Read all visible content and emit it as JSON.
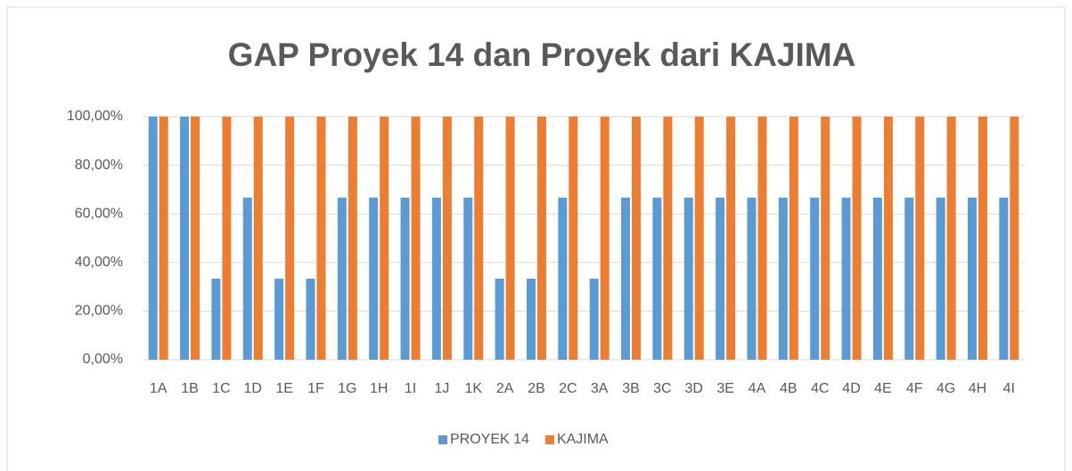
{
  "chart_data": {
    "type": "bar",
    "title": "GAP Proyek 14 dan Proyek dari KAJIMA",
    "categories": [
      "1A",
      "1B",
      "1C",
      "1D",
      "1E",
      "1F",
      "1G",
      "1H",
      "1I",
      "1J",
      "1K",
      "2A",
      "2B",
      "2C",
      "3A",
      "3B",
      "3C",
      "3D",
      "3E",
      "4A",
      "4B",
      "4C",
      "4D",
      "4E",
      "4F",
      "4G",
      "4H",
      "4I"
    ],
    "series": [
      {
        "name": "PROYEK 14",
        "color": "#5b9bd5",
        "values": [
          100,
          100,
          33.33,
          66.67,
          33.33,
          33.33,
          66.67,
          66.67,
          66.67,
          66.67,
          66.67,
          33.33,
          33.33,
          66.67,
          33.33,
          66.67,
          66.67,
          66.67,
          66.67,
          66.67,
          66.67,
          66.67,
          66.67,
          66.67,
          66.67,
          66.67,
          66.67,
          66.67
        ]
      },
      {
        "name": "KAJIMA",
        "color": "#ed7d31",
        "values": [
          100,
          100,
          100,
          100,
          100,
          100,
          100,
          100,
          100,
          100,
          100,
          100,
          100,
          100,
          100,
          100,
          100,
          100,
          100,
          100,
          100,
          100,
          100,
          100,
          100,
          100,
          100,
          100
        ]
      }
    ],
    "ylim": [
      0,
      100
    ],
    "yticks": [
      {
        "value": 0,
        "label": "0,00%"
      },
      {
        "value": 20,
        "label": "20,00%"
      },
      {
        "value": 40,
        "label": "40,00%"
      },
      {
        "value": 60,
        "label": "60,00%"
      },
      {
        "value": 80,
        "label": "80,00%"
      },
      {
        "value": 100,
        "label": "100,00%"
      }
    ],
    "grid": true,
    "legend": "bottom"
  }
}
